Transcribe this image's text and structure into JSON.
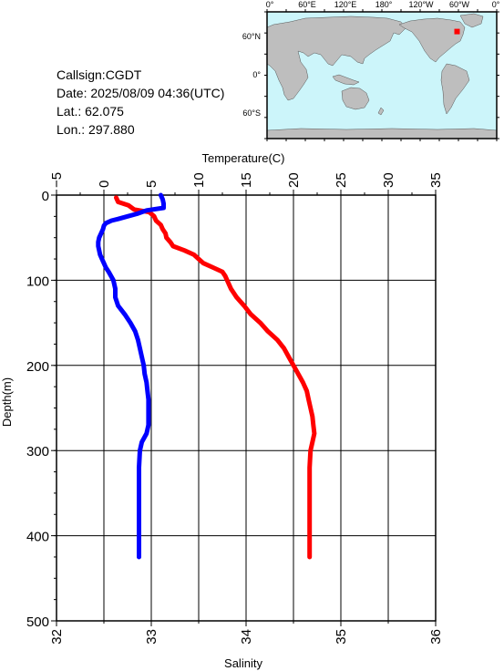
{
  "info": {
    "callsign": "Callsign:CGDT",
    "date": "Date:  2025/08/09 04:36(UTC)",
    "lat": "Lat.:   62.075",
    "lon": "Lon.:  297.880"
  },
  "map": {
    "lon_labels": [
      "0°",
      "60°E",
      "120°E",
      "180°",
      "120°W",
      "60°W",
      "0°"
    ],
    "lat_labels": [
      "60°N",
      "0°",
      "60°S"
    ],
    "ocean_color": "#ccf5fa",
    "land_color": "#bebebe",
    "marker_color": "#ff0000",
    "station": {
      "lon": 297.88,
      "lat": 62.075
    }
  },
  "chart_data": {
    "type": "line",
    "ylabel": "Depth(m)",
    "y_ticks": [
      "0",
      "100",
      "200",
      "300",
      "400",
      "500"
    ],
    "ylim": [
      0,
      500
    ],
    "y_inverted": true,
    "top_axis": {
      "label": "Temperature(C)",
      "range": [
        -5,
        35
      ],
      "ticks": [
        "−5",
        "0",
        "5",
        "10",
        "15",
        "20",
        "25",
        "30",
        "35"
      ]
    },
    "bottom_axis": {
      "label": "Salinity",
      "range": [
        32,
        36
      ],
      "ticks": [
        "32",
        "33",
        "34",
        "35",
        "36"
      ]
    },
    "grid": true,
    "series": [
      {
        "axis": "top",
        "color": "#ff0000",
        "depth": [
          3,
          8,
          12,
          17,
          20,
          25,
          30,
          35,
          40,
          45,
          50,
          55,
          60,
          65,
          70,
          75,
          80,
          85,
          90,
          95,
          100,
          110,
          120,
          130,
          140,
          150,
          160,
          170,
          180,
          190,
          200,
          210,
          220,
          230,
          240,
          250,
          260,
          270,
          280,
          290,
          300,
          320,
          350,
          400,
          425
        ],
        "values": [
          1.3,
          1.5,
          2.6,
          3.2,
          4.8,
          5.3,
          5.5,
          6.0,
          6.2,
          6.5,
          6.6,
          7.0,
          7.3,
          8.5,
          9.5,
          10.0,
          10.5,
          11.5,
          12.5,
          12.8,
          13.0,
          13.4,
          14.0,
          14.8,
          15.5,
          16.5,
          17.3,
          18.3,
          19.0,
          19.5,
          20.0,
          20.5,
          21.0,
          21.4,
          21.6,
          21.8,
          22.0,
          22.1,
          22.2,
          22.0,
          21.8,
          21.7,
          21.7,
          21.7,
          21.7
        ]
      },
      {
        "axis": "bottom",
        "color": "#0000ff",
        "depth": [
          0,
          5,
          10,
          15,
          18,
          22,
          25,
          28,
          30,
          33,
          36,
          40,
          45,
          50,
          55,
          60,
          65,
          70,
          75,
          80,
          85,
          90,
          100,
          110,
          120,
          130,
          140,
          150,
          160,
          170,
          180,
          190,
          200,
          210,
          220,
          230,
          240,
          250,
          260,
          270,
          280,
          290,
          300,
          320,
          350,
          400,
          425
        ],
        "values": [
          33.1,
          33.12,
          33.13,
          33.13,
          32.95,
          32.85,
          32.75,
          32.65,
          32.58,
          32.52,
          32.5,
          32.49,
          32.47,
          32.45,
          32.44,
          32.44,
          32.45,
          32.46,
          32.48,
          32.5,
          32.52,
          32.55,
          32.6,
          32.62,
          32.62,
          32.65,
          32.72,
          32.78,
          32.83,
          32.86,
          32.88,
          32.9,
          32.92,
          32.93,
          32.95,
          32.96,
          32.97,
          32.97,
          32.97,
          32.97,
          32.95,
          32.9,
          32.88,
          32.87,
          32.87,
          32.87,
          32.87
        ]
      }
    ]
  }
}
